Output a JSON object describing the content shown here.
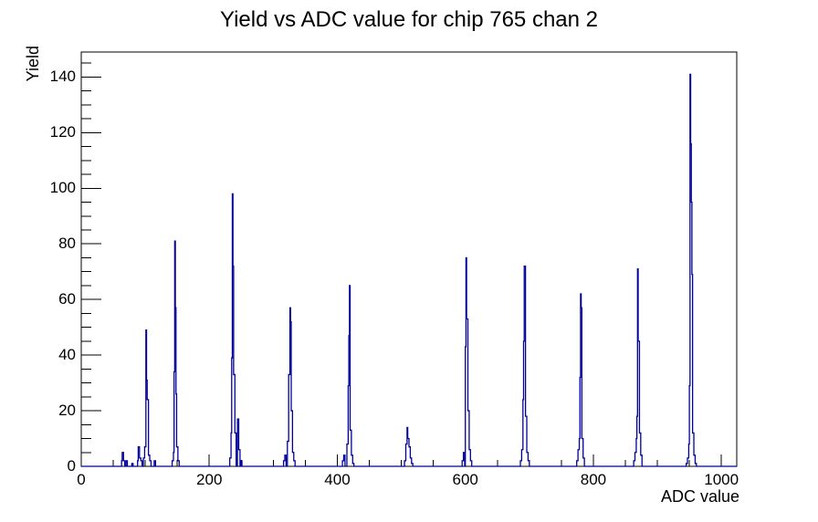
{
  "title": "Yield vs ADC value for chip 765 chan 2",
  "chart_data": {
    "type": "bar",
    "subtype": "histogram-step",
    "title": "Yield vs ADC value for chip 765 chan 2",
    "xlabel": "ADC value",
    "ylabel": "Yield",
    "xlim": [
      0,
      1024
    ],
    "ylim": [
      0,
      149
    ],
    "grid": false,
    "legend": "none",
    "line_color": "#000099",
    "frame_color": "#000000",
    "background_color": "#ffffff",
    "bin_width": 2,
    "x_axis": {
      "major_step": 200,
      "minor_step": 50,
      "tick_labels": [
        {
          "text": "0",
          "value": 0
        },
        {
          "text": "200",
          "value": 200
        },
        {
          "text": "400",
          "value": 400
        },
        {
          "text": "600",
          "value": 600
        },
        {
          "text": "800",
          "value": 800
        },
        {
          "text": "1000",
          "value": 1000
        }
      ]
    },
    "y_axis": {
      "major_step": 20,
      "minor_step": 5,
      "tick_labels": [
        {
          "text": "0",
          "value": 0
        },
        {
          "text": "20",
          "value": 20
        },
        {
          "text": "40",
          "value": 40
        },
        {
          "text": "60",
          "value": 60
        },
        {
          "text": "80",
          "value": 80
        },
        {
          "text": "100",
          "value": 100
        },
        {
          "text": "120",
          "value": 120
        },
        {
          "text": "140",
          "value": 140
        }
      ]
    },
    "bins": [
      [
        63,
        2
      ],
      [
        64,
        5
      ],
      [
        66,
        2
      ],
      [
        70,
        2
      ],
      [
        79,
        1
      ],
      [
        88,
        2
      ],
      [
        89,
        7
      ],
      [
        91,
        3
      ],
      [
        93,
        2
      ],
      [
        97,
        3
      ],
      [
        99,
        7
      ],
      [
        101,
        49
      ],
      [
        102,
        31
      ],
      [
        103,
        24
      ],
      [
        105,
        4
      ],
      [
        107,
        2
      ],
      [
        114,
        2
      ],
      [
        142,
        2
      ],
      [
        144,
        5
      ],
      [
        145,
        34
      ],
      [
        146,
        81
      ],
      [
        147,
        57
      ],
      [
        148,
        26
      ],
      [
        149,
        7
      ],
      [
        151,
        2
      ],
      [
        232,
        3
      ],
      [
        234,
        12
      ],
      [
        235,
        39
      ],
      [
        236,
        98
      ],
      [
        237,
        72
      ],
      [
        238,
        33
      ],
      [
        240,
        12
      ],
      [
        244,
        17
      ],
      [
        246,
        6
      ],
      [
        249,
        2
      ],
      [
        316,
        2
      ],
      [
        318,
        4
      ],
      [
        322,
        9
      ],
      [
        324,
        33
      ],
      [
        326,
        57
      ],
      [
        327,
        52
      ],
      [
        328,
        20
      ],
      [
        330,
        5
      ],
      [
        332,
        2
      ],
      [
        408,
        2
      ],
      [
        410,
        4
      ],
      [
        415,
        8
      ],
      [
        417,
        29
      ],
      [
        418,
        47
      ],
      [
        419,
        65
      ],
      [
        420,
        13
      ],
      [
        422,
        4
      ],
      [
        424,
        1
      ],
      [
        505,
        2
      ],
      [
        507,
        8
      ],
      [
        509,
        14
      ],
      [
        510,
        10
      ],
      [
        512,
        7
      ],
      [
        514,
        3
      ],
      [
        516,
        1
      ],
      [
        595,
        2
      ],
      [
        597,
        5
      ],
      [
        600,
        43
      ],
      [
        601,
        75
      ],
      [
        602,
        53
      ],
      [
        604,
        20
      ],
      [
        606,
        6
      ],
      [
        608,
        2
      ],
      [
        686,
        2
      ],
      [
        688,
        6
      ],
      [
        690,
        24
      ],
      [
        691,
        45
      ],
      [
        692,
        72
      ],
      [
        694,
        18
      ],
      [
        696,
        5
      ],
      [
        698,
        2
      ],
      [
        774,
        2
      ],
      [
        776,
        6
      ],
      [
        778,
        10
      ],
      [
        779,
        32
      ],
      [
        780,
        62
      ],
      [
        781,
        57
      ],
      [
        782,
        10
      ],
      [
        784,
        3
      ],
      [
        863,
        2
      ],
      [
        865,
        5
      ],
      [
        867,
        10
      ],
      [
        868,
        18
      ],
      [
        869,
        71
      ],
      [
        870,
        45
      ],
      [
        872,
        12
      ],
      [
        874,
        4
      ],
      [
        945,
        1
      ],
      [
        947,
        3
      ],
      [
        949,
        8
      ],
      [
        950,
        29
      ],
      [
        951,
        141
      ],
      [
        952,
        116
      ],
      [
        953,
        95
      ],
      [
        954,
        69
      ],
      [
        955,
        12
      ],
      [
        957,
        4
      ],
      [
        959,
        1
      ]
    ],
    "peak_summary": [
      {
        "adc": 101,
        "yield": 49
      },
      {
        "adc": 146,
        "yield": 81
      },
      {
        "adc": 236,
        "yield": 98
      },
      {
        "adc": 326,
        "yield": 57
      },
      {
        "adc": 419,
        "yield": 65
      },
      {
        "adc": 509,
        "yield": 14
      },
      {
        "adc": 601,
        "yield": 75
      },
      {
        "adc": 692,
        "yield": 72
      },
      {
        "adc": 780,
        "yield": 62
      },
      {
        "adc": 869,
        "yield": 71
      },
      {
        "adc": 951,
        "yield": 141
      }
    ]
  }
}
